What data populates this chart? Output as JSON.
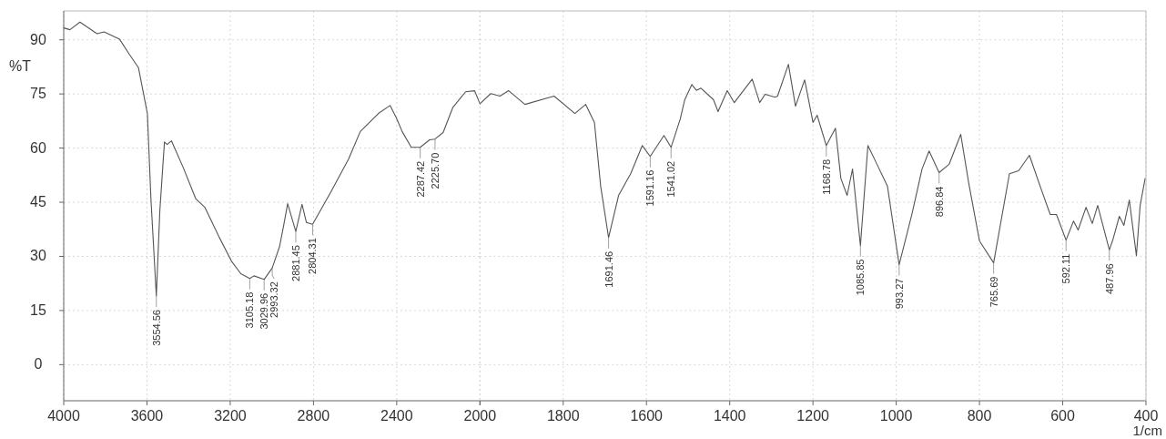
{
  "chart_data": [
    {
      "type": "line",
      "ylabel": "%T",
      "xlim": [
        4000,
        2000
      ],
      "ylim": [
        -10,
        98
      ],
      "xticks": [
        4000,
        3600,
        3200,
        2800,
        2400,
        2000
      ],
      "yticks": [
        0,
        15,
        30,
        45,
        60,
        75,
        90
      ],
      "grid": true,
      "line_style": "solid",
      "tick_labels": true,
      "series": [
        {
          "color": "#555555",
          "x": [
            4000,
            3970,
            3922,
            3840,
            3806,
            3732,
            3685,
            3641,
            3598,
            3581,
            3555,
            3538,
            3516,
            3503,
            3482,
            3425,
            3366,
            3322,
            3252,
            3192,
            3149,
            3106,
            3086,
            3037,
            2998,
            2963,
            2942,
            2924,
            2885,
            2855,
            2834,
            2804,
            2717,
            2631,
            2575,
            2488,
            2432,
            2402,
            2374,
            2330,
            2287,
            2242,
            2216,
            2177,
            2130,
            2069,
            2026,
            2000
          ],
          "values": [
            93.3,
            92.8,
            94.9,
            91.7,
            92.2,
            90.2,
            86,
            82.3,
            69.6,
            46,
            19,
            42.8,
            61.7,
            61,
            62,
            54.5,
            46,
            43.6,
            35.2,
            28.5,
            25.2,
            23.9,
            24.6,
            23.6,
            26.8,
            32.7,
            38.9,
            44.6,
            36.9,
            44.4,
            39.4,
            38.9,
            47.8,
            57,
            64.6,
            69.6,
            71.8,
            68.4,
            64.6,
            60.2,
            60.2,
            62.3,
            62.5,
            64.3,
            71.3,
            75.6,
            75.9,
            72.3
          ]
        }
      ],
      "annotations": [
        {
          "text": "3554.56",
          "x": 3555,
          "y": 19
        },
        {
          "text": "3105.18",
          "x": 3106,
          "y": 23.9
        },
        {
          "text": "3029.96",
          "x": 3037,
          "y": 23.6
        },
        {
          "text": "2993.32",
          "x": 2998,
          "y": 26.8
        },
        {
          "text": "2881.45",
          "x": 2885,
          "y": 36.9
        },
        {
          "text": "2804.31",
          "x": 2804,
          "y": 38.9
        },
        {
          "text": "2287.42",
          "x": 2287,
          "y": 60.2
        },
        {
          "text": "2225.70",
          "x": 2216,
          "y": 62.5
        }
      ]
    },
    {
      "type": "line",
      "xlabel": "1/cm",
      "xlim": [
        2000,
        400
      ],
      "ylim": [
        -10,
        98
      ],
      "xticks": [
        {
          "value": 2000,
          "label": null
        },
        1800,
        1600,
        1400,
        1200,
        1000,
        800,
        600,
        400
      ],
      "yticks": [
        0,
        15,
        30,
        45,
        60,
        75,
        90
      ],
      "grid": true,
      "line_style": "solid",
      "tick_labels": "x",
      "series": [
        {
          "color": "#555555",
          "x": [
            2000,
            1974,
            1952,
            1931,
            1892,
            1822,
            1772,
            1746,
            1725,
            1710,
            1691,
            1667,
            1638,
            1610,
            1591,
            1558,
            1541,
            1519,
            1508,
            1491,
            1480,
            1469,
            1439,
            1428,
            1406,
            1389,
            1346,
            1328,
            1315,
            1291,
            1285,
            1259,
            1242,
            1220,
            1200,
            1190,
            1168,
            1146,
            1133,
            1118,
            1105,
            1086,
            1068,
            1047,
            1021,
            993,
            962,
            938,
            921,
            897,
            873,
            845,
            826,
            800,
            766,
            728,
            706,
            680,
            652,
            630,
            615,
            592,
            574,
            563,
            544,
            529,
            516,
            488,
            479,
            464,
            453,
            440,
            423,
            414,
            402
          ],
          "values": [
            72.3,
            75.1,
            74.4,
            75.9,
            72.1,
            74.4,
            69.6,
            72.1,
            67.1,
            49.4,
            35.2,
            46.9,
            52.9,
            60.7,
            57.7,
            63.5,
            60.2,
            68,
            73.4,
            77.6,
            76,
            76.6,
            73.4,
            70.1,
            75.9,
            72.6,
            79.1,
            72.6,
            74.9,
            74.1,
            74.4,
            83.2,
            71.6,
            78.9,
            67.1,
            69.1,
            60.7,
            65.5,
            51.6,
            46.9,
            54.2,
            33,
            60.7,
            55.7,
            49.4,
            27.7,
            41.8,
            54.2,
            59.2,
            53.2,
            55.5,
            63.8,
            50.4,
            34.3,
            28.2,
            52.9,
            53.7,
            58,
            48.7,
            41.6,
            41.6,
            34.5,
            39.8,
            37.3,
            43.6,
            39.1,
            44.1,
            31.8,
            34.8,
            41.1,
            38.6,
            45.6,
            30.2,
            44.1,
            51.6
          ]
        }
      ],
      "annotations": [
        {
          "text": "1691.46",
          "x": 1691,
          "y": 35.2
        },
        {
          "text": "1591.16",
          "x": 1591,
          "y": 57.7
        },
        {
          "text": "1541.02",
          "x": 1541,
          "y": 60.2
        },
        {
          "text": "1168.78",
          "x": 1168,
          "y": 60.7
        },
        {
          "text": "1085.85",
          "x": 1086,
          "y": 33
        },
        {
          "text": "993.27",
          "x": 993,
          "y": 27.7
        },
        {
          "text": "896.84",
          "x": 897,
          "y": 53.2
        },
        {
          "text": "765.69",
          "x": 766,
          "y": 28.2
        },
        {
          "text": "592.11",
          "x": 592,
          "y": 34.5
        },
        {
          "text": "487.96",
          "x": 488,
          "y": 31.8
        }
      ]
    }
  ]
}
